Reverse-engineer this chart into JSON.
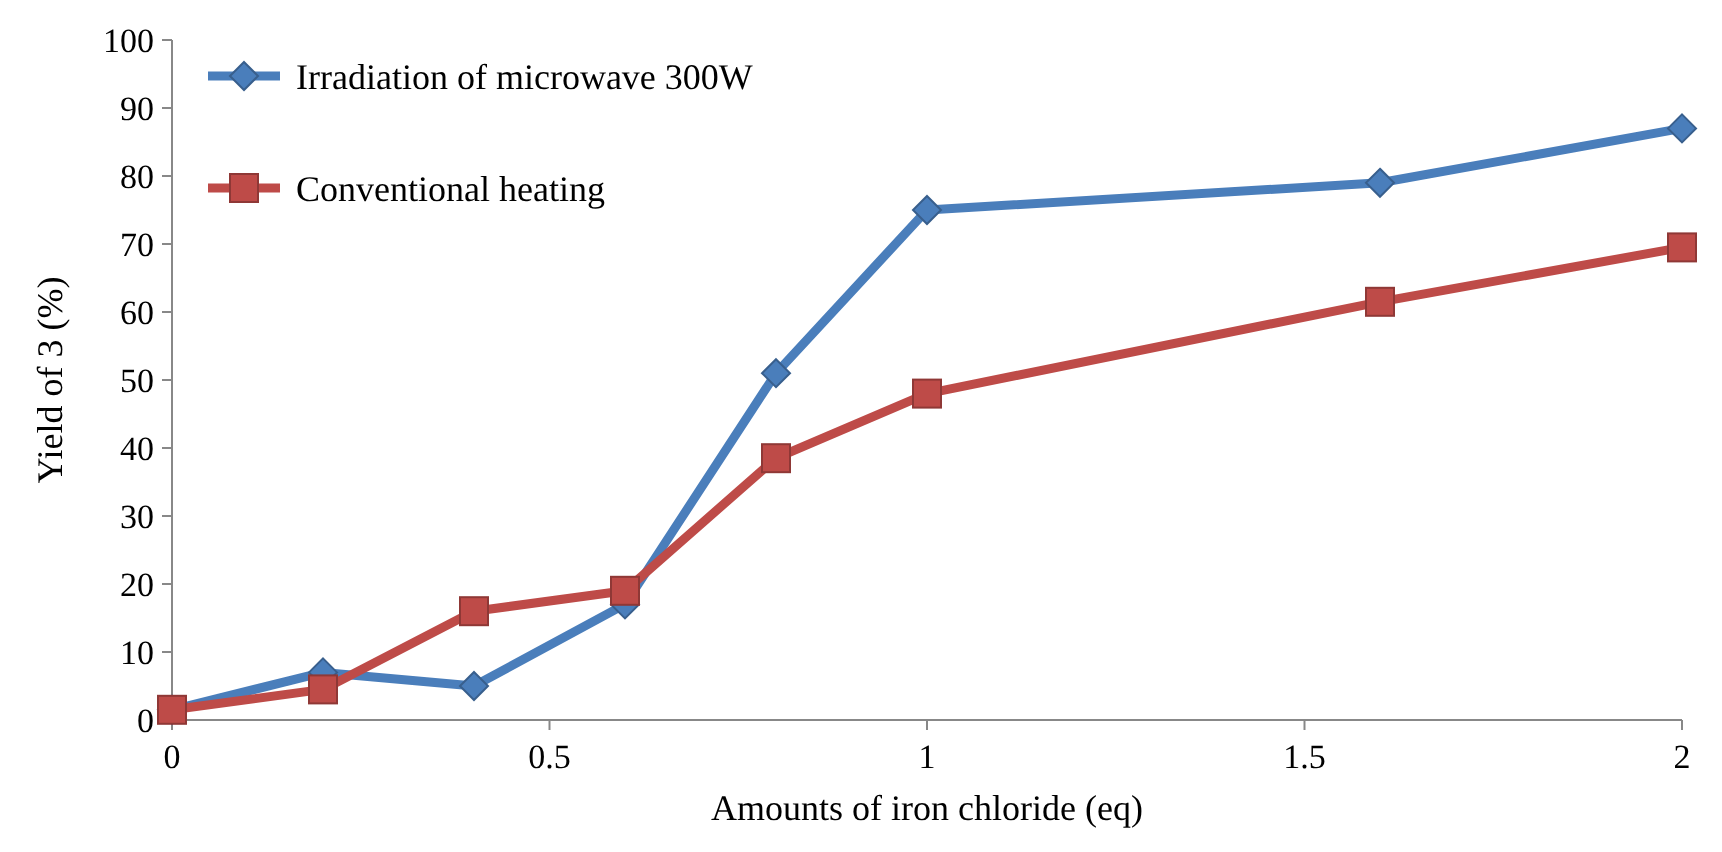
{
  "chart_data": {
    "type": "line",
    "xlabel": "Amounts of iron chloride (eq)",
    "ylabel": "Yield of 3 (%)",
    "x": [
      0,
      0.2,
      0.4,
      0.6,
      0.8,
      1,
      1.6,
      2
    ],
    "xlim": [
      0,
      2
    ],
    "xticks": [
      0,
      0.5,
      1,
      1.5,
      2
    ],
    "ylim": [
      0,
      100
    ],
    "yticks": [
      0,
      10,
      20,
      30,
      40,
      50,
      60,
      70,
      80,
      90,
      100
    ],
    "grid": false,
    "legend": "top left",
    "series": [
      {
        "name": "Irradiation of microwave 300W",
        "color": "#4a7ebb",
        "marker": "diamond",
        "values": [
          1.5,
          7,
          5,
          17,
          51,
          75,
          79,
          87
        ]
      },
      {
        "name": "Conventional heating",
        "color": "#be4b48",
        "marker": "square",
        "values": [
          1.5,
          4.5,
          16,
          19,
          38.5,
          48,
          61.5,
          69.5
        ]
      }
    ]
  }
}
